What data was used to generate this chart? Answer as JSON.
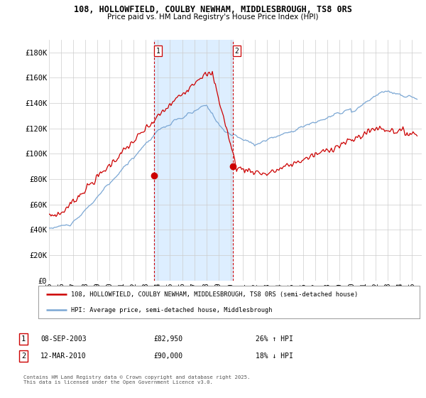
{
  "title1": "108, HOLLOWFIELD, COULBY NEWHAM, MIDDLESBROUGH, TS8 0RS",
  "title2": "Price paid vs. HM Land Registry's House Price Index (HPI)",
  "legend_line1": "108, HOLLOWFIELD, COULBY NEWHAM, MIDDLESBROUGH, TS8 0RS (semi-detached house)",
  "legend_line2": "HPI: Average price, semi-detached house, Middlesbrough",
  "annotation_footer": "Contains HM Land Registry data © Crown copyright and database right 2025.\nThis data is licensed under the Open Government Licence v3.0.",
  "sale1_date": "08-SEP-2003",
  "sale1_price": 82950,
  "sale1_label": "1",
  "sale1_hpi": "26% ↑ HPI",
  "sale2_date": "12-MAR-2010",
  "sale2_price": 90000,
  "sale2_label": "2",
  "sale2_hpi": "18% ↓ HPI",
  "sale1_x": 2003.69,
  "sale2_x": 2010.19,
  "hpi_color": "#7ba7d4",
  "price_color": "#cc0000",
  "shading_color": "#ddeeff",
  "vline_color": "#cc0000",
  "background_color": "#ffffff",
  "grid_color": "#cccccc",
  "ylim": [
    0,
    190000
  ],
  "xlim_start": 1995.0,
  "xlim_end": 2025.8
}
